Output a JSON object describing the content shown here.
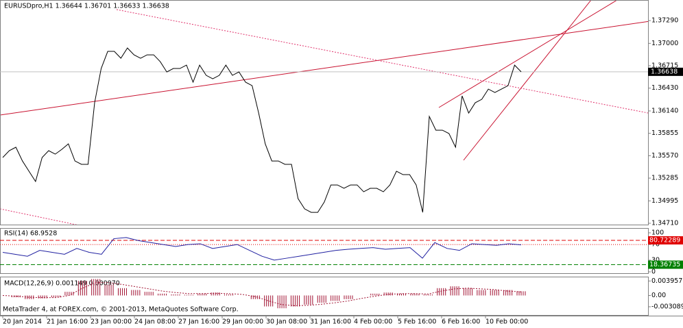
{
  "chart_data": [
    {
      "type": "line",
      "title": "EURUSDpro,H1  1.36644 1.36701 1.36633 1.36638",
      "color": "#000000",
      "values": [
        1.35547,
        1.35634,
        1.35678,
        1.35503,
        1.35372,
        1.35242,
        1.35547,
        1.35634,
        1.3559,
        1.35651,
        1.35721,
        1.35503,
        1.3546,
        1.3546,
        1.36244,
        1.3668,
        1.36898,
        1.36898,
        1.36811,
        1.36941,
        1.36854,
        1.36811,
        1.36854,
        1.36854,
        1.36767,
        1.36636,
        1.3668,
        1.3668,
        1.36723,
        1.36506,
        1.36723,
        1.36593,
        1.36549,
        1.36593,
        1.36723,
        1.36593,
        1.36636,
        1.36506,
        1.36462,
        1.36113,
        1.35721,
        1.35503,
        1.35503,
        1.3546,
        1.3546,
        1.35024,
        1.34893,
        1.34849,
        1.34849,
        1.3498,
        1.35198,
        1.35198,
        1.35155,
        1.35198,
        1.35198,
        1.35111,
        1.35155,
        1.35155,
        1.35111,
        1.35198,
        1.35372,
        1.35329,
        1.35329,
        1.35198,
        1.34849,
        1.3607,
        1.35895,
        1.35895,
        1.35852,
        1.35678,
        1.36331,
        1.36113,
        1.36244,
        1.36288,
        1.36418,
        1.36375,
        1.36418,
        1.36462,
        1.36723,
        1.36638
      ],
      "ylim": [
        1.34693,
        1.37552
      ],
      "yticks": [
        {
          "value": 1.3729,
          "label": "1.37290"
        },
        {
          "value": 1.37,
          "label": "1.37000"
        },
        {
          "value": 1.36715,
          "label": "1.36715"
        },
        {
          "value": 1.3643,
          "label": "1.36430"
        },
        {
          "value": 1.3614,
          "label": "1.36140"
        },
        {
          "value": 1.35855,
          "label": "1.35855"
        },
        {
          "value": 1.3557,
          "label": "1.35570"
        },
        {
          "value": 1.35285,
          "label": "1.35285"
        },
        {
          "value": 1.34995,
          "label": "1.34995"
        },
        {
          "value": 1.3471,
          "label": "1.34710"
        }
      ],
      "current": 1.36638
    },
    {
      "type": "line",
      "title": "RSI(14) 68.9528",
      "color": "#1f1fa0",
      "values": [
        50,
        45,
        40,
        55,
        50,
        45,
        60,
        50,
        45,
        85,
        88,
        80,
        75,
        70,
        65,
        70,
        72,
        60,
        65,
        70,
        55,
        40,
        30,
        35,
        40,
        45,
        50,
        55,
        58,
        60,
        62,
        58,
        60,
        62,
        35,
        75,
        60,
        55,
        72,
        70,
        68,
        72,
        69
      ],
      "ylim": [
        -3.5,
        112.3
      ],
      "yticks": [
        100,
        70,
        30,
        0
      ],
      "upper_level": 80.72289,
      "upper_color": "#e00000",
      "lower_level": 18.36735,
      "lower_color": "#008000",
      "dotted_levels": [
        70
      ]
    },
    {
      "type": "bar",
      "title": "MACD(12,26,9) 0.001149 0.000970",
      "color": "#a01030",
      "values": [
        0,
        -0.0005,
        -0.001,
        -0.0008,
        -0.0005,
        0.001,
        0.004,
        0.0045,
        0.003,
        0.002,
        0.0015,
        0.001,
        0.0005,
        0.0003,
        0.0002,
        0.0005,
        0.0008,
        0.0003,
        0,
        -0.001,
        -0.003,
        -0.0035,
        -0.003,
        -0.0025,
        -0.002,
        -0.0015,
        -0.001,
        0,
        0.0005,
        0.0008,
        0.0005,
        0.0005,
        0.0003,
        0.002,
        0.0025,
        0.002,
        0.0015,
        0.0015,
        0.0015,
        0.001149
      ],
      "signal_values": [
        0,
        -0.0002,
        -0.0005,
        -0.0006,
        -0.0006,
        0,
        0.002,
        0.0035,
        0.0035,
        0.003,
        0.0024,
        0.0018,
        0.0012,
        0.0008,
        0.0005,
        0.0005,
        0.0006,
        0.0005,
        0.0003,
        -0.0003,
        -0.0015,
        -0.0025,
        -0.0028,
        -0.0027,
        -0.0024,
        -0.002,
        -0.0015,
        -0.0008,
        -0.0002,
        0.0003,
        0.0005,
        0.0005,
        0.0004,
        0.0012,
        0.0018,
        0.002,
        0.0018,
        0.0016,
        0.0012,
        0.00097
      ],
      "ylim": [
        -0.00534,
        0.005144
      ],
      "yticks": [
        0.003957,
        {
          "value": 0,
          "label": "0.00"
        },
        -0.003089
      ]
    }
  ],
  "time_labels": [
    "20 Jan 2014",
    "21 Jan 16:00",
    "23 Jan 00:00",
    "24 Jan 08:00",
    "27 Jan 16:00",
    "29 Jan 00:00",
    "30 Jan 08:00",
    "31 Jan 16:00",
    "4 Feb 00:00",
    "5 Feb 16:00",
    "6 Feb 16:00",
    "10 Feb 00:00"
  ],
  "footer": "MetaTrader 4, at FOREX.com, © 2001-2013, MetaQuotes Software Corp."
}
